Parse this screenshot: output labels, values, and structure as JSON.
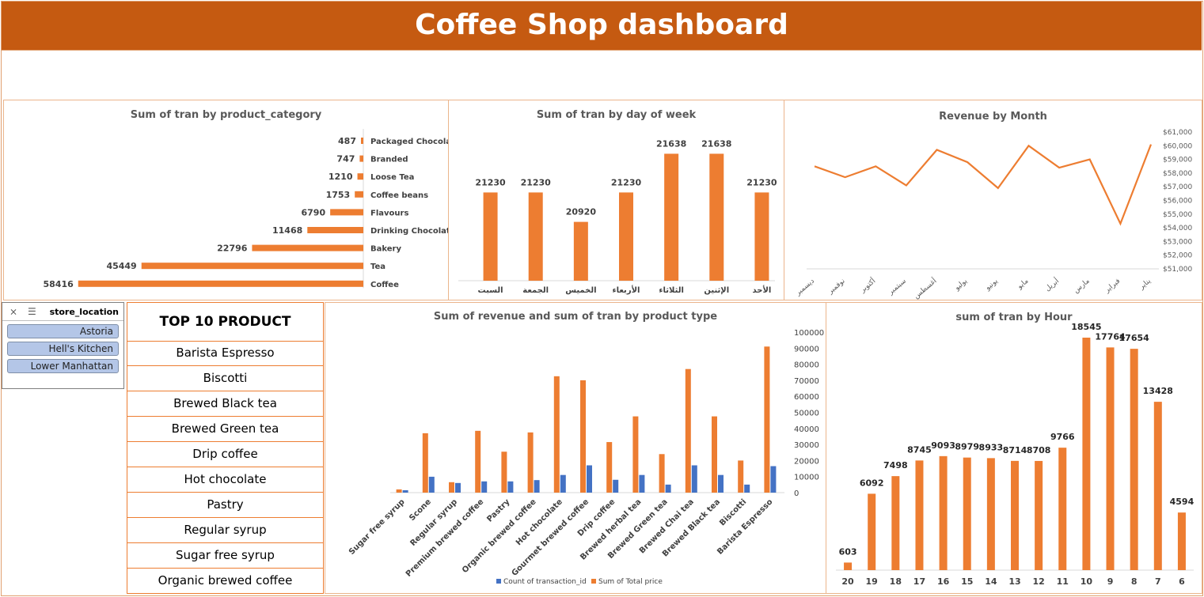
{
  "header": {
    "title": "Coffee Shop dashboard"
  },
  "colors": {
    "accent": "#c55a11",
    "bar": "#ed7d31",
    "blue": "#4472c4",
    "slicer": "#b4c6e7"
  },
  "slicer": {
    "title": "store_location",
    "icons": [
      "filter-clear-icon",
      "multi-select-icon"
    ],
    "items": [
      "Astoria",
      "Hell's Kitchen",
      "Lower Manhattan"
    ]
  },
  "top10": {
    "title": "TOP 10 PRODUCT",
    "items": [
      "Barista Espresso",
      "Biscotti",
      "Brewed Black tea",
      "Brewed Green tea",
      "Drip coffee",
      "Hot chocolate",
      "Pastry",
      "Regular syrup",
      "Sugar free syrup",
      "Organic brewed coffee"
    ]
  },
  "chart_data": [
    {
      "id": "category",
      "type": "bar",
      "orientation": "horizontal",
      "title": "Sum of tran by product_category",
      "categories": [
        "Packaged Chocolate",
        "Branded",
        "Loose Tea",
        "Coffee beans",
        "Flavours",
        "Drinking Chocolate",
        "Bakery",
        "Tea",
        "Coffee"
      ],
      "values": [
        487,
        747,
        1210,
        1753,
        6790,
        11468,
        22796,
        45449,
        58416
      ],
      "axis": "reversed, categories on right",
      "data_labels": true
    },
    {
      "id": "weekday",
      "type": "bar",
      "title": "Sum of tran by day of week",
      "categories": [
        "السبت",
        "الجمعة",
        "الخميس",
        "الأربعاء",
        "الثلاثاء",
        "الإثنين",
        "الأحد"
      ],
      "values": [
        21230,
        21230,
        20920,
        21230,
        21638,
        21638,
        21230
      ],
      "data_labels": true
    },
    {
      "id": "month",
      "type": "line",
      "title": "Revenue by Month",
      "categories": [
        "ديسمبر",
        "نوفمبر",
        "أكتوبر",
        "سبتمبر",
        "أغسطس",
        "يوليو",
        "يونيو",
        "مايو",
        "أبريل",
        "مارس",
        "فبراير",
        "يناير"
      ],
      "values": [
        58500,
        57700,
        58500,
        57100,
        59700,
        58800,
        56900,
        60000,
        58400,
        59000,
        54300,
        60100
      ],
      "ylim": [
        51000,
        61000
      ],
      "yticks": [
        "$51,000",
        "$52,000",
        "$53,000",
        "$54,000",
        "$55,000",
        "$56,000",
        "$57,000",
        "$58,000",
        "$59,000",
        "$60,000",
        "$61,000"
      ],
      "yaxis": "right"
    },
    {
      "id": "product",
      "type": "bar",
      "title": "Sum of revenue and sum of tran by product type",
      "categories": [
        "Sugar free syrup",
        "Scone",
        "Regular syrup",
        "Premium brewed coffee",
        "Pastry",
        "Organic brewed coffee",
        "Hot chocolate",
        "Gourmet brewed coffee",
        "Drip coffee",
        "Brewed herbal tea",
        "Brewed Green tea",
        "Brewed Chai tea",
        "Brewed Black tea",
        "Biscotti",
        "Barista Espresso"
      ],
      "series": [
        {
          "name": "Count of transaction_id",
          "color": "#4472c4",
          "values": [
            1500,
            9900,
            6000,
            7000,
            7000,
            7800,
            11000,
            17000,
            8000,
            11000,
            5000,
            17000,
            11000,
            5000,
            16500
          ]
        },
        {
          "name": "Sum of Total price",
          "color": "#ed7d31",
          "values": [
            2000,
            37000,
            6500,
            38500,
            25500,
            37500,
            72500,
            70000,
            31500,
            47500,
            24000,
            77000,
            47500,
            20000,
            91000
          ]
        }
      ],
      "ylim": [
        0,
        100000
      ],
      "yticks": [
        "0",
        "10000",
        "20000",
        "30000",
        "40000",
        "50000",
        "60000",
        "70000",
        "80000",
        "90000",
        "100000"
      ],
      "yaxis": "right"
    },
    {
      "id": "hour",
      "type": "bar",
      "title": "sum of tran by Hour",
      "categories": [
        "20",
        "19",
        "18",
        "17",
        "16",
        "15",
        "14",
        "13",
        "12",
        "11",
        "10",
        "9",
        "8",
        "7",
        "6"
      ],
      "values": [
        603,
        6092,
        7498,
        8745,
        9093,
        8979,
        8933,
        8714,
        8708,
        9766,
        18545,
        17764,
        17654,
        13428,
        4594
      ],
      "data_labels": true
    }
  ]
}
